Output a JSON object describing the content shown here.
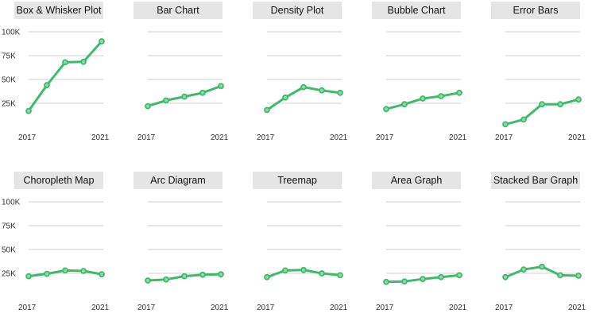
{
  "style": {
    "line_color": "#3dbb6b",
    "marker_fill": "#8fd9a8",
    "grid_color": "#d0d0d0",
    "title_bg": "#e5e5e5"
  },
  "chart_data": [
    {
      "type": "line",
      "title": "Box & Whisker Plot",
      "x": [
        2017,
        2018,
        2019,
        2020,
        2021
      ],
      "values": [
        17000,
        44000,
        68000,
        68500,
        90000
      ],
      "ylim": [
        0,
        100000
      ],
      "yticks": [
        "100K",
        "75K",
        "50K",
        "25K"
      ],
      "xticks": [
        "2017",
        "2021"
      ],
      "grid": true
    },
    {
      "type": "line",
      "title": "Bar Chart",
      "x": [
        2017,
        2018,
        2019,
        2020,
        2021
      ],
      "values": [
        22000,
        28000,
        32000,
        36000,
        43000
      ],
      "ylim": [
        0,
        100000
      ],
      "xticks": [
        "2017",
        "2021"
      ],
      "grid": true
    },
    {
      "type": "line",
      "title": "Density Plot",
      "x": [
        2017,
        2018,
        2019,
        2020,
        2021
      ],
      "values": [
        18000,
        31000,
        42000,
        38500,
        36000
      ],
      "ylim": [
        0,
        100000
      ],
      "xticks": [
        "2017",
        "2021"
      ],
      "grid": true
    },
    {
      "type": "line",
      "title": "Bubble Chart",
      "x": [
        2017,
        2018,
        2019,
        2020,
        2021
      ],
      "values": [
        19000,
        24000,
        30000,
        32500,
        36000
      ],
      "ylim": [
        0,
        100000
      ],
      "xticks": [
        "2017",
        "2021"
      ],
      "grid": true
    },
    {
      "type": "line",
      "title": "Error Bars",
      "x": [
        2017,
        2018,
        2019,
        2020,
        2021
      ],
      "values": [
        3000,
        8000,
        24000,
        24000,
        29000
      ],
      "ylim": [
        0,
        100000
      ],
      "xticks": [
        "2017",
        "2021"
      ],
      "grid": true
    },
    {
      "type": "line",
      "title": "Choropleth Map",
      "x": [
        2017,
        2018,
        2019,
        2020,
        2021
      ],
      "values": [
        22000,
        24500,
        28000,
        27500,
        24000
      ],
      "ylim": [
        0,
        100000
      ],
      "yticks": [
        "100K",
        "75K",
        "50K",
        "25K"
      ],
      "xticks": [
        "2017",
        "2021"
      ],
      "grid": true
    },
    {
      "type": "line",
      "title": "Arc Diagram",
      "x": [
        2017,
        2018,
        2019,
        2020,
        2021
      ],
      "values": [
        17500,
        18500,
        22000,
        23500,
        24000
      ],
      "ylim": [
        0,
        100000
      ],
      "xticks": [
        "2017",
        "2021"
      ],
      "grid": true
    },
    {
      "type": "line",
      "title": "Treemap",
      "x": [
        2017,
        2018,
        2019,
        2020,
        2021
      ],
      "values": [
        21000,
        28000,
        28500,
        25000,
        23000
      ],
      "ylim": [
        0,
        100000
      ],
      "xticks": [
        "2017",
        "2021"
      ],
      "grid": true
    },
    {
      "type": "line",
      "title": "Area Graph",
      "x": [
        2017,
        2018,
        2019,
        2020,
        2021
      ],
      "values": [
        16000,
        16500,
        19000,
        21000,
        23000
      ],
      "ylim": [
        0,
        100000
      ],
      "xticks": [
        "2017",
        "2021"
      ],
      "grid": true
    },
    {
      "type": "line",
      "title": "Stacked Bar Graph",
      "x": [
        2017,
        2018,
        2019,
        2020,
        2021
      ],
      "values": [
        21000,
        29000,
        32000,
        23000,
        22500
      ],
      "ylim": [
        0,
        100000
      ],
      "xticks": [
        "2017",
        "2021"
      ],
      "grid": true
    }
  ]
}
